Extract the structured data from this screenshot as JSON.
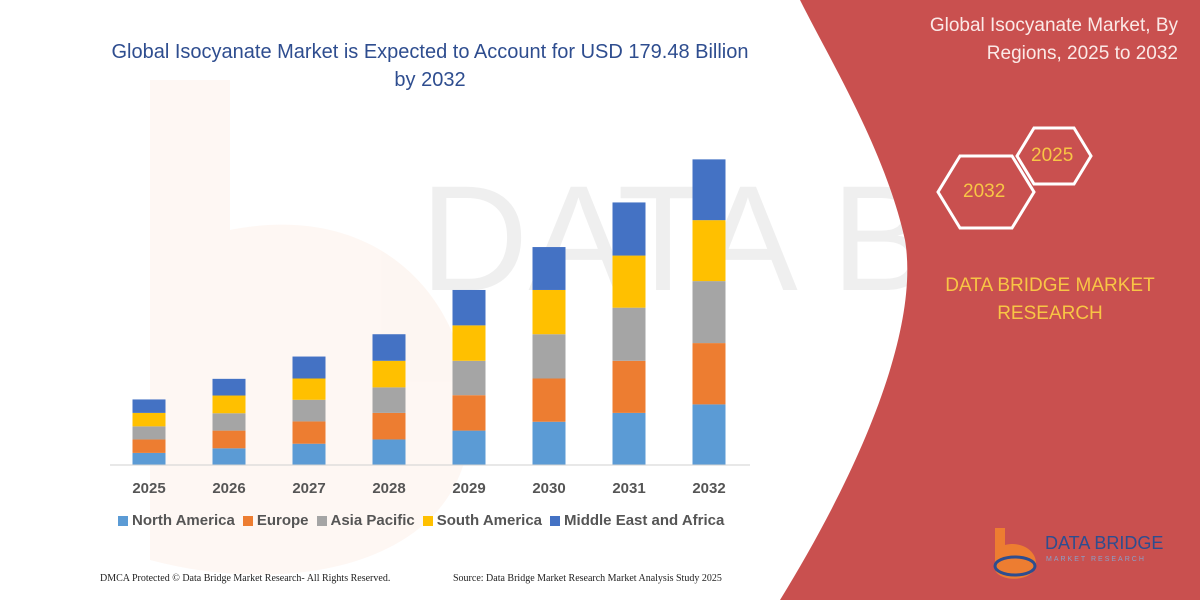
{
  "chart_data": {
    "type": "bar",
    "stacked": true,
    "title": "Global Isocyanate Market is Expected to Account for USD 179.48 Billion by 2032",
    "categories": [
      "2025",
      "2026",
      "2027",
      "2028",
      "2029",
      "2030",
      "2031",
      "2032"
    ],
    "series": [
      {
        "name": "North America",
        "color": "#5b9bd5",
        "values": [
          7.1,
          9.8,
          12.5,
          15.0,
          20.2,
          25.4,
          30.6,
          35.6
        ]
      },
      {
        "name": "Europe",
        "color": "#ed7d31",
        "values": [
          7.9,
          10.4,
          13.1,
          15.6,
          20.8,
          25.4,
          30.6,
          36.0
        ]
      },
      {
        "name": "Asia Pacific",
        "color": "#a5a5a5",
        "values": [
          7.7,
          10.2,
          12.7,
          15.0,
          20.2,
          26.0,
          31.2,
          36.4
        ]
      },
      {
        "name": "South America",
        "color": "#ffc000",
        "values": [
          7.9,
          10.4,
          12.5,
          15.6,
          20.8,
          26.0,
          30.6,
          35.8
        ]
      },
      {
        "name": "Middle East and Africa",
        "color": "#4472c4",
        "values": [
          7.9,
          9.8,
          12.9,
          15.6,
          20.8,
          25.2,
          31.2,
          35.7
        ]
      }
    ],
    "ylim": [
      0,
      185
    ],
    "grid": false,
    "legend": "bottom",
    "xlabel": "",
    "ylabel": ""
  },
  "title": "Global Isocyanate Market is Expected to Account for USD 179.48 Billion by 2032",
  "panel": {
    "title": "Global Isocyanate Market, By Regions, 2025 to 2032",
    "hex_start": "2025",
    "hex_end": "2032",
    "brand": "DATA BRIDGE MARKET RESEARCH",
    "color": "#c9504f",
    "accent": "#f8c545"
  },
  "footer": {
    "copyright": "DMCA Protected © Data Bridge Market Research-  All Rights Reserved.",
    "source": "Source: Data Bridge Market Research  Market Analysis Study 2025"
  },
  "logo": {
    "name": "DATA BRIDGE",
    "sub": "MARKET RESEARCH"
  }
}
